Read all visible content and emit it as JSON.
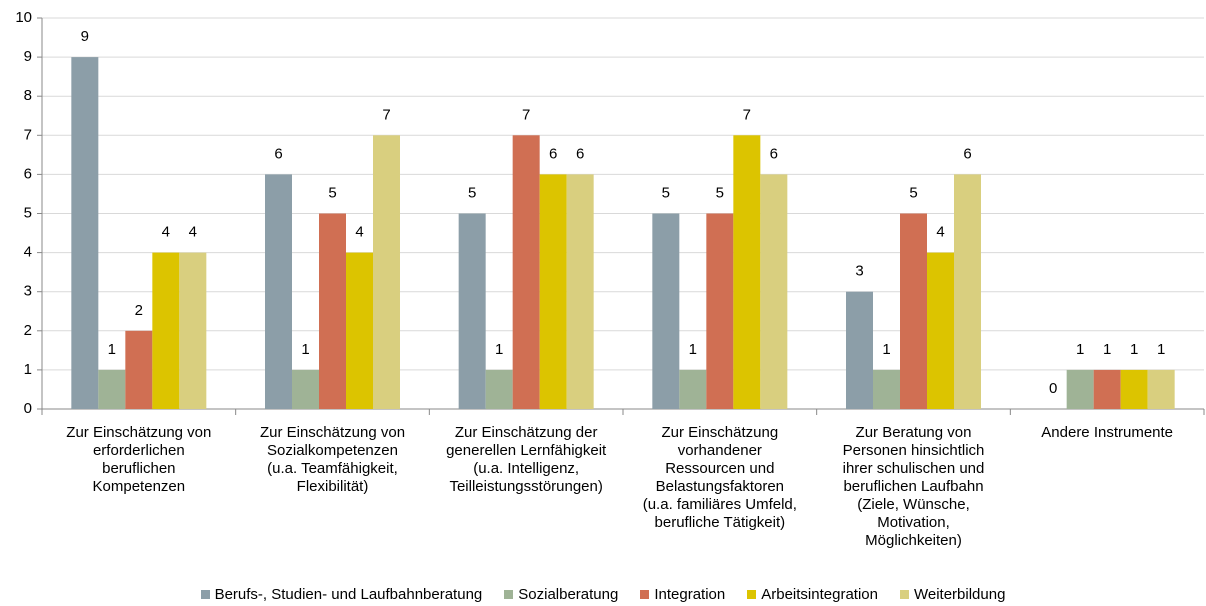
{
  "chart_data": {
    "type": "bar",
    "categories": [
      "Zur Einschätzung von\nerforderlichen\nberuflichen\nKompetenzen",
      "Zur Einschätzung von\nSozialkompetenzen\n(u.a. Teamfähigkeit,\nFlexibilität)",
      "Zur Einschätzung der\ngenerellen Lernfähigkeit\n(u.a. Intelligenz,\nTeilleistungsstörungen)",
      "Zur Einschätzung\nvorhandener\nRessourcen und\nBelastungsfaktoren\n(u.a. familiäres Umfeld,\nberufliche Tätigkeit)",
      "Zur Beratung von\nPersonen hinsichtlich\nihrer schulischen und\nberuflichen Laufbahn\n(Ziele, Wünsche,\nMotivation,\nMöglichkeiten)",
      "Andere Instrumente"
    ],
    "series": [
      {
        "name": "Berufs-, Studien- und Laufbahnberatung",
        "color": "#8c9ea8",
        "values": [
          9,
          6,
          5,
          5,
          3,
          0
        ]
      },
      {
        "name": "Sozialberatung",
        "color": "#9fb396",
        "values": [
          1,
          1,
          1,
          1,
          1,
          1
        ]
      },
      {
        "name": "Integration",
        "color": "#d06f53",
        "values": [
          2,
          5,
          7,
          5,
          5,
          1
        ]
      },
      {
        "name": "Arbeitsintegration",
        "color": "#dcc400",
        "values": [
          4,
          4,
          6,
          7,
          4,
          1
        ]
      },
      {
        "name": "Weiterbildung",
        "color": "#d9cf7f",
        "values": [
          4,
          7,
          6,
          6,
          6,
          1
        ]
      }
    ],
    "ylim": [
      0,
      10
    ],
    "yticks": [
      0,
      1,
      2,
      3,
      4,
      5,
      6,
      7,
      8,
      9,
      10
    ],
    "grid": true,
    "legend": "bottom"
  }
}
